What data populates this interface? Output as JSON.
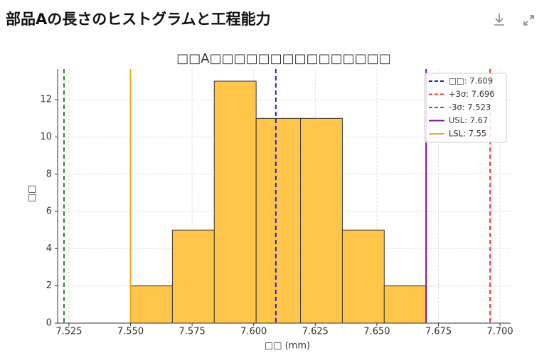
{
  "header": {
    "title": "部品Aの長さのヒストグラムと工程能力"
  },
  "chart_data": {
    "type": "histogram",
    "title": "□□A□□□□□□□□□□□□□□□",
    "x_label": "□□ (mm)",
    "y_label": "□□",
    "bins": [
      7.55,
      7.567,
      7.584,
      7.601,
      7.619,
      7.636,
      7.653,
      7.67
    ],
    "counts": [
      2,
      5,
      13,
      11,
      11,
      5,
      2
    ],
    "color": "#ffc64b",
    "xlim": [
      7.5204,
      7.7043
    ],
    "ylim": [
      0,
      13.65
    ],
    "xticks": [
      7.525,
      {
        "value": 7.55,
        "label": "7.550"
      },
      7.575,
      {
        "value": 7.6,
        "label": "7.600"
      },
      7.625,
      {
        "value": 7.65,
        "label": "7.650"
      },
      7.675,
      {
        "value": 7.7,
        "label": "7.700"
      }
    ],
    "yticks": [
      0,
      2,
      4,
      6,
      8,
      10,
      12
    ],
    "grid": true,
    "legend": "upper right",
    "vlines": [
      {
        "name": "□□: 7.609",
        "value": 7.609,
        "color": "#1f1fd0",
        "style": "dashed"
      },
      {
        "name": "+3σ: 7.696",
        "value": 7.696,
        "color": "#e8302a",
        "style": "dashed"
      },
      {
        "name": "-3σ: 7.523",
        "value": 7.523,
        "color": "#2a8a2a",
        "style": "dashed"
      },
      {
        "name": "USL: 7.67",
        "value": 7.67,
        "color": "#7d0f8f",
        "style": "solid"
      },
      {
        "name": "LSL: 7.55",
        "value": 7.55,
        "color": "#f0a81c",
        "style": "solid"
      }
    ]
  }
}
